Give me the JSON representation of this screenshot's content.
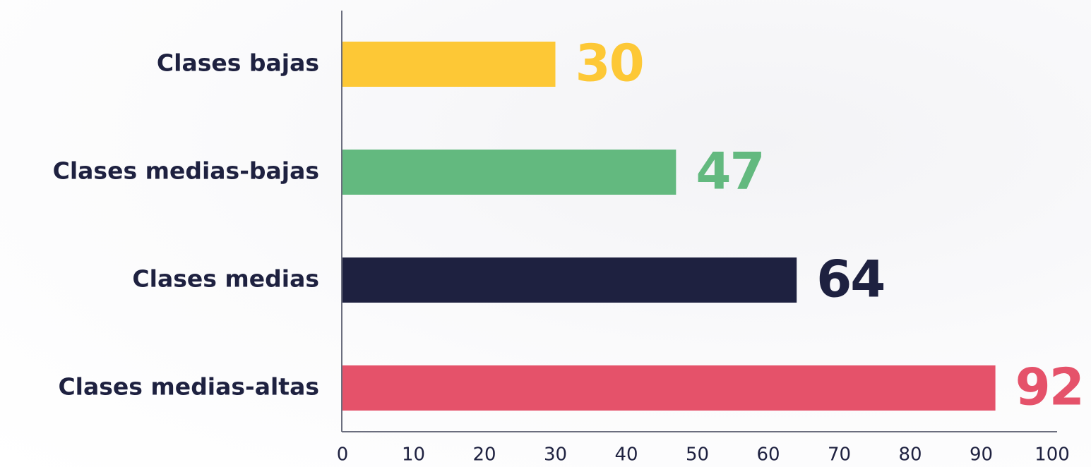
{
  "chart_data": {
    "type": "bar",
    "orientation": "horizontal",
    "categories": [
      "Clases bajas",
      "Clases medias-bajas",
      "Clases medias",
      "Clases medias-altas"
    ],
    "values": [
      30,
      47,
      64,
      92
    ],
    "colors": [
      "#fdc836",
      "#63b97f",
      "#1e2140",
      "#e5526a"
    ],
    "xlim": [
      0,
      100
    ],
    "xticks": [
      0,
      10,
      20,
      30,
      40,
      50,
      60,
      70,
      80,
      90,
      100
    ],
    "grid": false
  }
}
